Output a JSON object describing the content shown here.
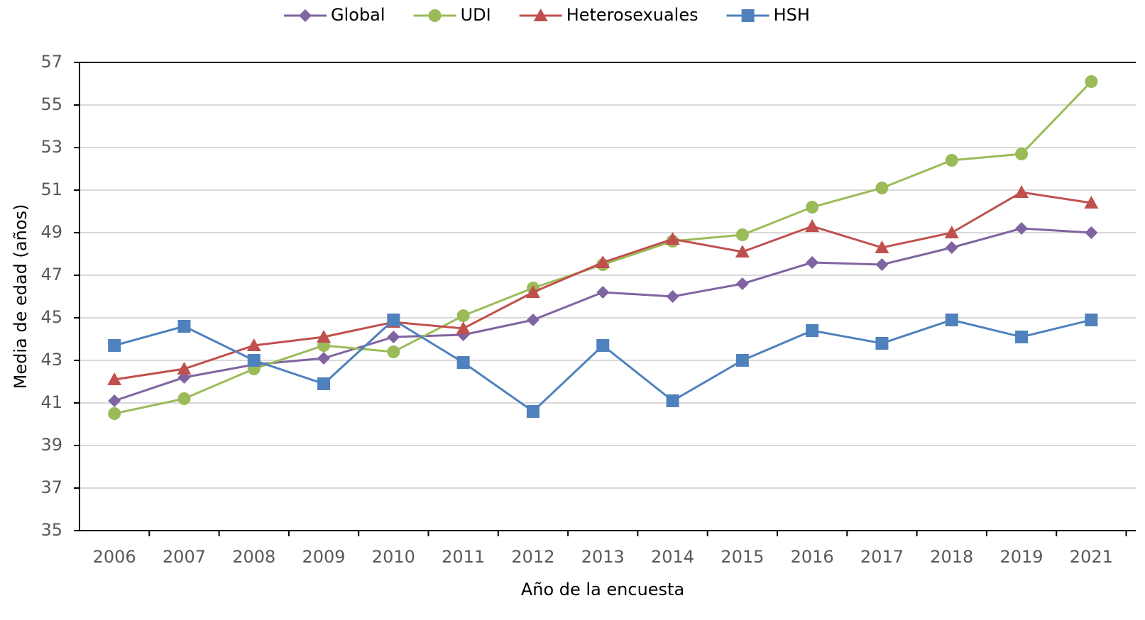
{
  "chart_data": {
    "type": "line",
    "x_label": "Año de la encuesta",
    "y_label": "Media de edad (años)",
    "categories": [
      "2006",
      "2007",
      "2008",
      "2009",
      "2010",
      "2011",
      "2012",
      "2013",
      "2014",
      "2015",
      "2016",
      "2017",
      "2018",
      "2019",
      "2021"
    ],
    "series": [
      {
        "name": "Global",
        "color": "#8064a2",
        "marker": "diamond",
        "values": [
          41.1,
          42.2,
          42.8,
          43.1,
          44.1,
          44.2,
          44.9,
          46.2,
          46.0,
          46.6,
          47.6,
          47.5,
          48.3,
          49.2,
          49.0
        ]
      },
      {
        "name": "UDI",
        "color": "#9bbb59",
        "marker": "circle",
        "values": [
          40.5,
          41.2,
          42.6,
          43.7,
          43.4,
          45.1,
          46.4,
          47.5,
          48.6,
          48.9,
          50.2,
          51.1,
          52.4,
          52.7,
          56.1
        ]
      },
      {
        "name": "Heterosexuales",
        "color": "#c0504d",
        "marker": "triangle",
        "values": [
          42.1,
          42.6,
          43.7,
          44.1,
          44.8,
          44.5,
          46.2,
          47.6,
          48.7,
          48.1,
          49.3,
          48.3,
          49.0,
          50.9,
          50.4
        ]
      },
      {
        "name": "HSH",
        "color": "#4f81bd",
        "marker": "square",
        "values": [
          43.7,
          44.6,
          43.0,
          41.9,
          44.9,
          42.9,
          40.6,
          43.7,
          41.1,
          43.0,
          44.4,
          43.8,
          44.9,
          44.1,
          44.9
        ]
      }
    ],
    "ylim": [
      35,
      57
    ],
    "yticks": [
      35,
      37,
      39,
      41,
      43,
      45,
      47,
      49,
      51,
      53,
      55,
      57
    ],
    "grid": true,
    "legend": "top"
  }
}
